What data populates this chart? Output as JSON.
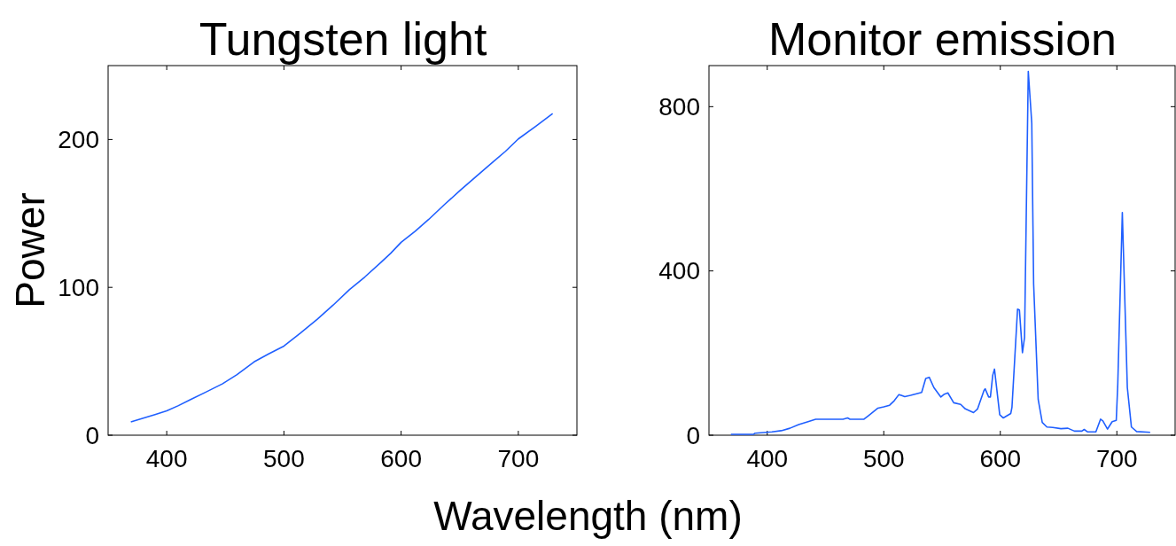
{
  "chart_data": [
    {
      "type": "line",
      "title": "Tungsten light",
      "xlabel": "Wavelength (nm)",
      "ylabel": "Power",
      "xlim": [
        350,
        750
      ],
      "xticks": [
        400,
        500,
        600,
        700
      ],
      "ylim": [
        0,
        250
      ],
      "yticks": [
        0,
        100,
        200
      ],
      "series": [
        {
          "color": "#1f5fff",
          "x": [
            369.4,
            380,
            390,
            400,
            410,
            420,
            433,
            447.4,
            460,
            474.5,
            487,
            500,
            514,
            528.5,
            542,
            555.8,
            569,
            582.9,
            591,
            600,
            612,
            623.6,
            637,
            650.7,
            664,
            677.8,
            689,
            700,
            715,
            729.3
          ],
          "values": [
            9,
            11.5,
            14,
            16.5,
            20,
            24,
            29,
            34.7,
            41,
            49.6,
            55,
            60.3,
            69,
            78.5,
            88,
            98.4,
            107,
            117,
            123,
            130.5,
            138,
            146,
            156,
            165.8,
            175,
            184.4,
            192,
            200.4,
            209,
            217.5
          ]
        }
      ]
    },
    {
      "type": "line",
      "title": "Monitor emission",
      "xlim": [
        350,
        750
      ],
      "xticks": [
        400,
        500,
        600,
        700
      ],
      "ylim": [
        0,
        900
      ],
      "yticks": [
        0,
        400,
        800
      ],
      "series": [
        {
          "color": "#1f5fff",
          "x": [
            368.8,
            388,
            389.6,
            404,
            412,
            419.5,
            427,
            435,
            441.6,
            465,
            469,
            471,
            483,
            487,
            495,
            500,
            505,
            509,
            513,
            518,
            523,
            532.5,
            536,
            539,
            543,
            549,
            552,
            555,
            560,
            566,
            570,
            577,
            580.5,
            586,
            587,
            590,
            591.5,
            593.5,
            595,
            599.5,
            602.6,
            609,
            610,
            614.8,
            616.4,
            619,
            620.8,
            624,
            627,
            628.6,
            632.5,
            636,
            640,
            645,
            652,
            658,
            663.6,
            670,
            672,
            675,
            682,
            686,
            688,
            692,
            696,
            699.5,
            700.8,
            704.7,
            709,
            712.5,
            717,
            728.6
          ],
          "values": [
            2,
            2,
            5,
            8,
            11,
            17,
            26,
            33,
            39,
            39,
            42,
            39,
            39,
            48,
            66,
            69,
            73,
            84,
            99,
            94,
            97,
            104,
            138,
            141,
            116,
            93,
            100,
            103,
            79,
            75,
            64,
            55,
            64,
            109,
            113,
            93,
            93,
            146,
            161,
            50,
            42,
            53,
            68,
            307,
            305,
            201,
            238,
            886,
            760,
            368,
            87,
            31,
            20,
            19,
            16,
            17,
            10,
            10,
            14,
            8,
            8,
            39,
            35,
            15,
            33,
            36,
            124,
            542,
            116,
            20,
            9,
            7
          ]
        }
      ]
    }
  ]
}
